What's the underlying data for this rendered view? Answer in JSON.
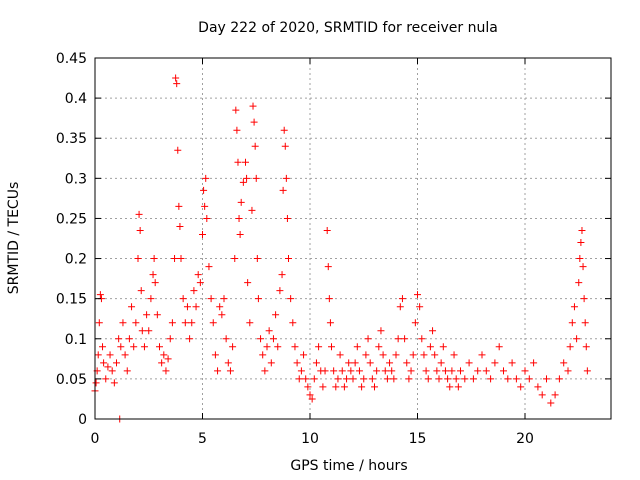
{
  "chart_data": {
    "type": "scatter",
    "title": "Day 222 of 2020, SRMTID for receiver nula",
    "xlabel": "GPS time / hours",
    "ylabel": "SRMTID / TECUs",
    "xlim": [
      0,
      24
    ],
    "ylim": [
      0,
      0.45
    ],
    "xticks": [
      0,
      5,
      10,
      15,
      20
    ],
    "xtick_labels": [
      "0",
      "5",
      "10",
      "15",
      "20"
    ],
    "yticks": [
      0,
      0.05,
      0.1,
      0.15,
      0.2,
      0.25,
      0.3,
      0.35,
      0.4,
      0.45
    ],
    "ytick_labels": [
      "0",
      "0.05",
      "0.1",
      "0.15",
      "0.2",
      "0.25",
      "0.3",
      "0.35",
      "0.4",
      "0.45"
    ],
    "grid": true,
    "marker": "+",
    "series": [
      {
        "name": "SRMTID",
        "color": "#ff0000",
        "points": [
          [
            0.0,
            0.035
          ],
          [
            0.05,
            0.045
          ],
          [
            0.1,
            0.06
          ],
          [
            0.15,
            0.08
          ],
          [
            0.2,
            0.12
          ],
          [
            0.25,
            0.155
          ],
          [
            0.3,
            0.15
          ],
          [
            0.35,
            0.09
          ],
          [
            0.4,
            0.07
          ],
          [
            0.5,
            0.05
          ],
          [
            0.6,
            0.065
          ],
          [
            0.7,
            0.08
          ],
          [
            0.8,
            0.06
          ],
          [
            0.9,
            0.045
          ],
          [
            1.0,
            0.07
          ],
          [
            1.1,
            0.1
          ],
          [
            1.15,
            0.0
          ],
          [
            1.2,
            0.09
          ],
          [
            1.3,
            0.12
          ],
          [
            1.4,
            0.08
          ],
          [
            1.5,
            0.06
          ],
          [
            1.6,
            0.1
          ],
          [
            1.7,
            0.14
          ],
          [
            1.8,
            0.09
          ],
          [
            1.9,
            0.12
          ],
          [
            2.0,
            0.2
          ],
          [
            2.05,
            0.255
          ],
          [
            2.1,
            0.235
          ],
          [
            2.15,
            0.16
          ],
          [
            2.2,
            0.11
          ],
          [
            2.3,
            0.09
          ],
          [
            2.4,
            0.13
          ],
          [
            2.5,
            0.11
          ],
          [
            2.6,
            0.15
          ],
          [
            2.7,
            0.18
          ],
          [
            2.75,
            0.2
          ],
          [
            2.8,
            0.17
          ],
          [
            2.9,
            0.13
          ],
          [
            3.0,
            0.09
          ],
          [
            3.1,
            0.07
          ],
          [
            3.2,
            0.08
          ],
          [
            3.3,
            0.06
          ],
          [
            3.4,
            0.075
          ],
          [
            3.5,
            0.1
          ],
          [
            3.6,
            0.12
          ],
          [
            3.7,
            0.2
          ],
          [
            3.75,
            0.425
          ],
          [
            3.8,
            0.418
          ],
          [
            3.85,
            0.335
          ],
          [
            3.9,
            0.265
          ],
          [
            3.95,
            0.24
          ],
          [
            4.0,
            0.2
          ],
          [
            4.1,
            0.15
          ],
          [
            4.2,
            0.12
          ],
          [
            4.3,
            0.14
          ],
          [
            4.4,
            0.1
          ],
          [
            4.5,
            0.12
          ],
          [
            4.6,
            0.16
          ],
          [
            4.7,
            0.14
          ],
          [
            4.8,
            0.18
          ],
          [
            4.9,
            0.17
          ],
          [
            5.0,
            0.23
          ],
          [
            5.05,
            0.285
          ],
          [
            5.1,
            0.265
          ],
          [
            5.15,
            0.3
          ],
          [
            5.2,
            0.25
          ],
          [
            5.3,
            0.19
          ],
          [
            5.4,
            0.15
          ],
          [
            5.5,
            0.12
          ],
          [
            5.6,
            0.08
          ],
          [
            5.7,
            0.06
          ],
          [
            5.8,
            0.14
          ],
          [
            5.9,
            0.13
          ],
          [
            6.0,
            0.15
          ],
          [
            6.1,
            0.1
          ],
          [
            6.2,
            0.07
          ],
          [
            6.3,
            0.06
          ],
          [
            6.4,
            0.09
          ],
          [
            6.5,
            0.2
          ],
          [
            6.55,
            0.385
          ],
          [
            6.6,
            0.36
          ],
          [
            6.65,
            0.32
          ],
          [
            6.7,
            0.25
          ],
          [
            6.75,
            0.23
          ],
          [
            6.8,
            0.27
          ],
          [
            6.9,
            0.295
          ],
          [
            7.0,
            0.32
          ],
          [
            7.05,
            0.3
          ],
          [
            7.1,
            0.17
          ],
          [
            7.2,
            0.12
          ],
          [
            7.3,
            0.26
          ],
          [
            7.35,
            0.39
          ],
          [
            7.4,
            0.37
          ],
          [
            7.45,
            0.34
          ],
          [
            7.5,
            0.3
          ],
          [
            7.55,
            0.2
          ],
          [
            7.6,
            0.15
          ],
          [
            7.7,
            0.1
          ],
          [
            7.8,
            0.08
          ],
          [
            7.9,
            0.06
          ],
          [
            8.0,
            0.09
          ],
          [
            8.1,
            0.11
          ],
          [
            8.2,
            0.07
          ],
          [
            8.3,
            0.1
          ],
          [
            8.4,
            0.13
          ],
          [
            8.5,
            0.09
          ],
          [
            8.6,
            0.16
          ],
          [
            8.7,
            0.18
          ],
          [
            8.75,
            0.285
          ],
          [
            8.8,
            0.36
          ],
          [
            8.85,
            0.34
          ],
          [
            8.9,
            0.3
          ],
          [
            8.95,
            0.25
          ],
          [
            9.0,
            0.2
          ],
          [
            9.1,
            0.15
          ],
          [
            9.2,
            0.12
          ],
          [
            9.3,
            0.09
          ],
          [
            9.4,
            0.07
          ],
          [
            9.5,
            0.05
          ],
          [
            9.6,
            0.06
          ],
          [
            9.7,
            0.08
          ],
          [
            9.8,
            0.05
          ],
          [
            9.9,
            0.04
          ],
          [
            10.0,
            0.03
          ],
          [
            10.1,
            0.025
          ],
          [
            10.2,
            0.05
          ],
          [
            10.3,
            0.07
          ],
          [
            10.4,
            0.09
          ],
          [
            10.5,
            0.06
          ],
          [
            10.6,
            0.04
          ],
          [
            10.7,
            0.06
          ],
          [
            10.8,
            0.235
          ],
          [
            10.85,
            0.19
          ],
          [
            10.9,
            0.15
          ],
          [
            10.95,
            0.12
          ],
          [
            11.0,
            0.09
          ],
          [
            11.1,
            0.06
          ],
          [
            11.2,
            0.04
          ],
          [
            11.3,
            0.05
          ],
          [
            11.4,
            0.08
          ],
          [
            11.5,
            0.06
          ],
          [
            11.6,
            0.04
          ],
          [
            11.7,
            0.05
          ],
          [
            11.8,
            0.07
          ],
          [
            11.9,
            0.06
          ],
          [
            12.0,
            0.05
          ],
          [
            12.1,
            0.07
          ],
          [
            12.2,
            0.09
          ],
          [
            12.3,
            0.06
          ],
          [
            12.4,
            0.04
          ],
          [
            12.5,
            0.05
          ],
          [
            12.6,
            0.08
          ],
          [
            12.7,
            0.1
          ],
          [
            12.8,
            0.07
          ],
          [
            12.9,
            0.05
          ],
          [
            13.0,
            0.04
          ],
          [
            13.1,
            0.06
          ],
          [
            13.2,
            0.09
          ],
          [
            13.3,
            0.11
          ],
          [
            13.4,
            0.08
          ],
          [
            13.5,
            0.06
          ],
          [
            13.6,
            0.05
          ],
          [
            13.7,
            0.07
          ],
          [
            13.8,
            0.06
          ],
          [
            13.9,
            0.05
          ],
          [
            14.0,
            0.08
          ],
          [
            14.1,
            0.1
          ],
          [
            14.2,
            0.14
          ],
          [
            14.3,
            0.15
          ],
          [
            14.4,
            0.1
          ],
          [
            14.5,
            0.07
          ],
          [
            14.6,
            0.05
          ],
          [
            14.7,
            0.06
          ],
          [
            14.8,
            0.08
          ],
          [
            14.9,
            0.12
          ],
          [
            15.0,
            0.155
          ],
          [
            15.1,
            0.14
          ],
          [
            15.2,
            0.1
          ],
          [
            15.3,
            0.08
          ],
          [
            15.4,
            0.06
          ],
          [
            15.5,
            0.05
          ],
          [
            15.6,
            0.09
          ],
          [
            15.7,
            0.11
          ],
          [
            15.8,
            0.08
          ],
          [
            15.9,
            0.06
          ],
          [
            16.0,
            0.05
          ],
          [
            16.1,
            0.07
          ],
          [
            16.2,
            0.09
          ],
          [
            16.3,
            0.06
          ],
          [
            16.4,
            0.05
          ],
          [
            16.5,
            0.04
          ],
          [
            16.6,
            0.06
          ],
          [
            16.7,
            0.08
          ],
          [
            16.8,
            0.05
          ],
          [
            16.9,
            0.04
          ],
          [
            17.0,
            0.06
          ],
          [
            17.2,
            0.05
          ],
          [
            17.4,
            0.07
          ],
          [
            17.6,
            0.05
          ],
          [
            17.8,
            0.06
          ],
          [
            18.0,
            0.08
          ],
          [
            18.2,
            0.06
          ],
          [
            18.4,
            0.05
          ],
          [
            18.6,
            0.07
          ],
          [
            18.8,
            0.09
          ],
          [
            19.0,
            0.06
          ],
          [
            19.2,
            0.05
          ],
          [
            19.4,
            0.07
          ],
          [
            19.6,
            0.05
          ],
          [
            19.8,
            0.04
          ],
          [
            20.0,
            0.06
          ],
          [
            20.2,
            0.05
          ],
          [
            20.4,
            0.07
          ],
          [
            20.6,
            0.04
          ],
          [
            20.8,
            0.03
          ],
          [
            21.0,
            0.05
          ],
          [
            21.2,
            0.02
          ],
          [
            21.4,
            0.03
          ],
          [
            21.6,
            0.05
          ],
          [
            21.8,
            0.07
          ],
          [
            22.0,
            0.06
          ],
          [
            22.1,
            0.09
          ],
          [
            22.2,
            0.12
          ],
          [
            22.3,
            0.14
          ],
          [
            22.4,
            0.1
          ],
          [
            22.5,
            0.17
          ],
          [
            22.55,
            0.2
          ],
          [
            22.6,
            0.22
          ],
          [
            22.65,
            0.235
          ],
          [
            22.7,
            0.19
          ],
          [
            22.75,
            0.15
          ],
          [
            22.8,
            0.12
          ],
          [
            22.85,
            0.09
          ],
          [
            22.9,
            0.06
          ]
        ]
      }
    ]
  }
}
